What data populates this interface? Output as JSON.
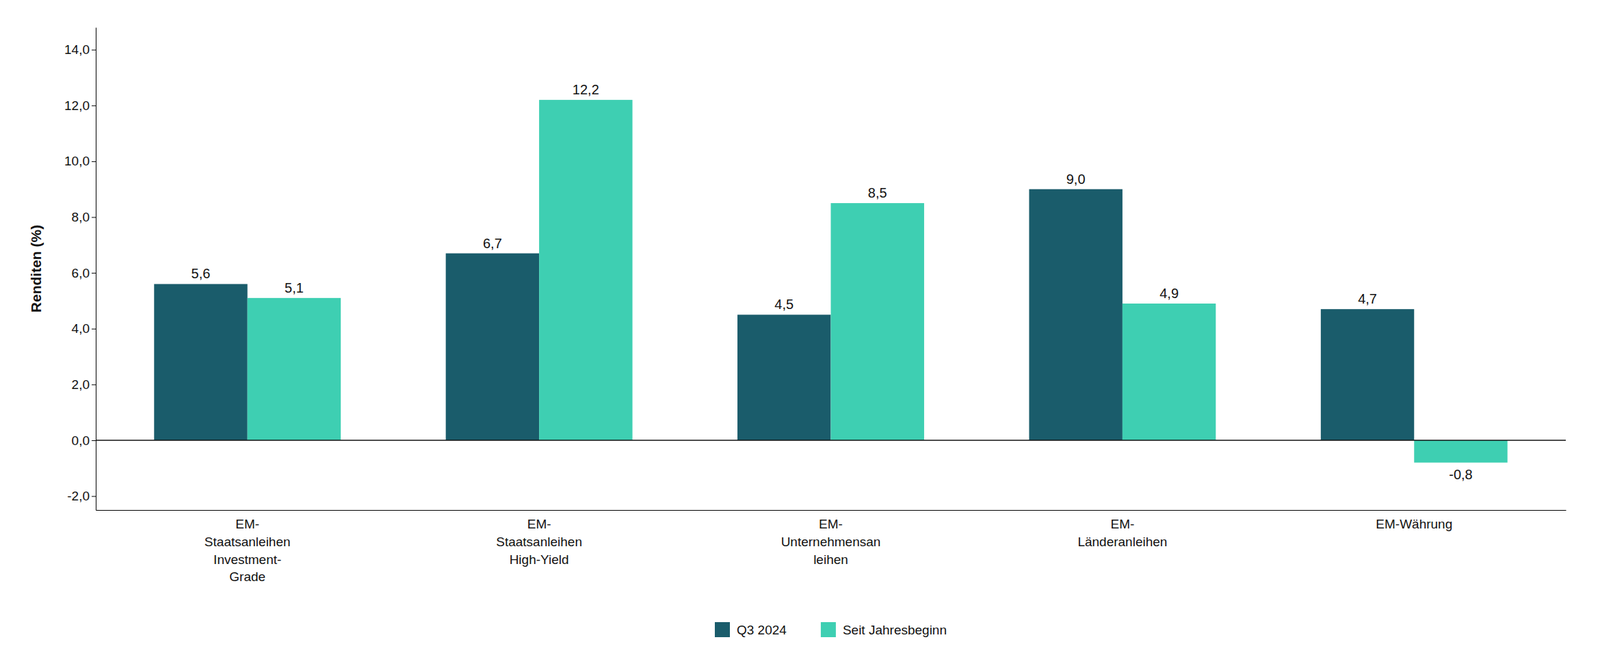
{
  "chart_data": {
    "type": "bar",
    "categories": [
      "EM-\nStaatsanleihen\nInvestment-\nGrade",
      "EM-\nStaatsanleihen\nHigh-Yield",
      "EM-\nUnternehmensan\nleihen",
      "EM-\nLänderanleihen",
      "EM-Währung"
    ],
    "series": [
      {
        "name": "Q3 2024",
        "color": "#1a5c6b",
        "values": [
          5.6,
          6.7,
          4.5,
          9.0,
          4.7
        ],
        "value_labels": [
          "5,6",
          "6,7",
          "4,5",
          "9,0",
          "4,7"
        ]
      },
      {
        "name": "Seit Jahresbeginn",
        "color": "#3ecfb2",
        "values": [
          5.1,
          12.2,
          8.5,
          4.9,
          -0.8
        ],
        "value_labels": [
          "5,1",
          "12,2",
          "8,5",
          "4,9",
          "-0,8"
        ]
      }
    ],
    "ylabel": "Renditen (%)",
    "ylim": [
      -2.5,
      14.8
    ],
    "yticks": [
      {
        "value": -2.0,
        "label": "-2,0"
      },
      {
        "value": 0.0,
        "label": "0,0"
      },
      {
        "value": 2.0,
        "label": "2,0"
      },
      {
        "value": 4.0,
        "label": "4,0"
      },
      {
        "value": 6.0,
        "label": "6,0"
      },
      {
        "value": 8.0,
        "label": "8,0"
      },
      {
        "value": 10.0,
        "label": "10,0"
      },
      {
        "value": 12.0,
        "label": "12,0"
      },
      {
        "value": 14.0,
        "label": "14,0"
      }
    ],
    "grid": false,
    "legend": "bottom",
    "data_labels": true
  }
}
